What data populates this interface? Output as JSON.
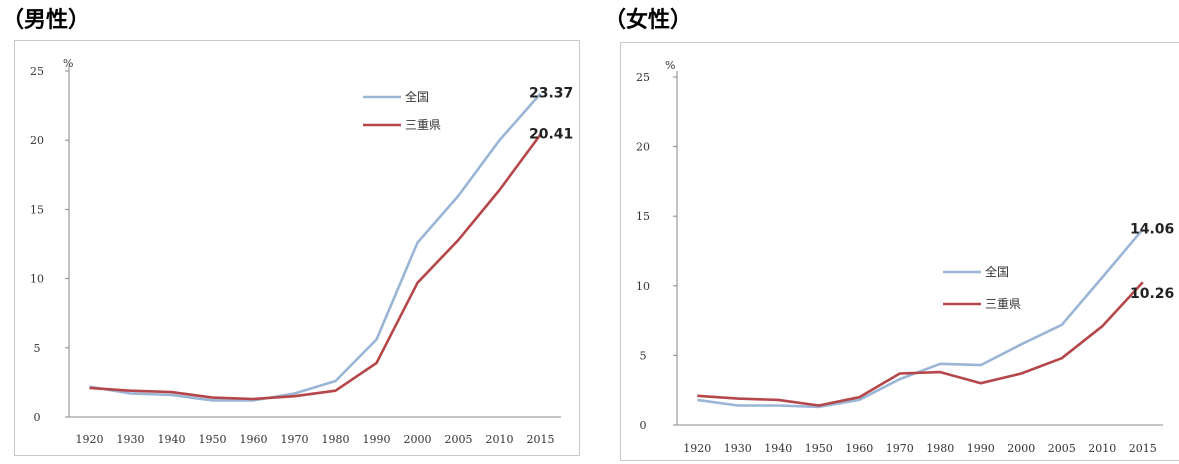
{
  "colors": {
    "national": "#9bb5d6",
    "mie": "#b5474a",
    "axis": "#8a8a8a"
  },
  "chart_data": [
    {
      "type": "line",
      "title": "（男性）",
      "unit": "%",
      "x": [
        "1920",
        "1930",
        "1940",
        "1950",
        "1960",
        "1970",
        "1980",
        "1990",
        "2000",
        "2005",
        "2010",
        "2015"
      ],
      "ylim": [
        0,
        25
      ],
      "yticks": [
        0,
        5,
        10,
        15,
        20,
        25
      ],
      "grid": false,
      "legend_position": "top-right",
      "series": [
        {
          "name": "全国",
          "values": [
            2.2,
            1.7,
            1.6,
            1.2,
            1.2,
            1.7,
            2.6,
            5.6,
            12.6,
            16.0,
            20.0,
            23.37
          ],
          "end_label": "23.37"
        },
        {
          "name": "三重県",
          "values": [
            2.1,
            1.9,
            1.8,
            1.4,
            1.3,
            1.5,
            1.9,
            3.9,
            9.7,
            12.8,
            16.4,
            20.41
          ],
          "end_label": "20.41"
        }
      ]
    },
    {
      "type": "line",
      "title": "（女性）",
      "unit": "%",
      "x": [
        "1920",
        "1930",
        "1940",
        "1950",
        "1960",
        "1970",
        "1980",
        "1990",
        "2000",
        "2005",
        "2010",
        "2015"
      ],
      "ylim": [
        0,
        25
      ],
      "yticks": [
        0,
        5,
        10,
        15,
        20,
        25
      ],
      "grid": false,
      "legend_position": "center-right",
      "series": [
        {
          "name": "全国",
          "values": [
            1.8,
            1.4,
            1.4,
            1.3,
            1.8,
            3.3,
            4.4,
            4.3,
            5.8,
            7.2,
            10.6,
            14.06
          ],
          "end_label": "14.06"
        },
        {
          "name": "三重県",
          "values": [
            2.1,
            1.9,
            1.8,
            1.4,
            2.0,
            3.7,
            3.8,
            3.0,
            3.7,
            4.8,
            7.1,
            10.26
          ],
          "end_label": "10.26"
        }
      ]
    }
  ]
}
